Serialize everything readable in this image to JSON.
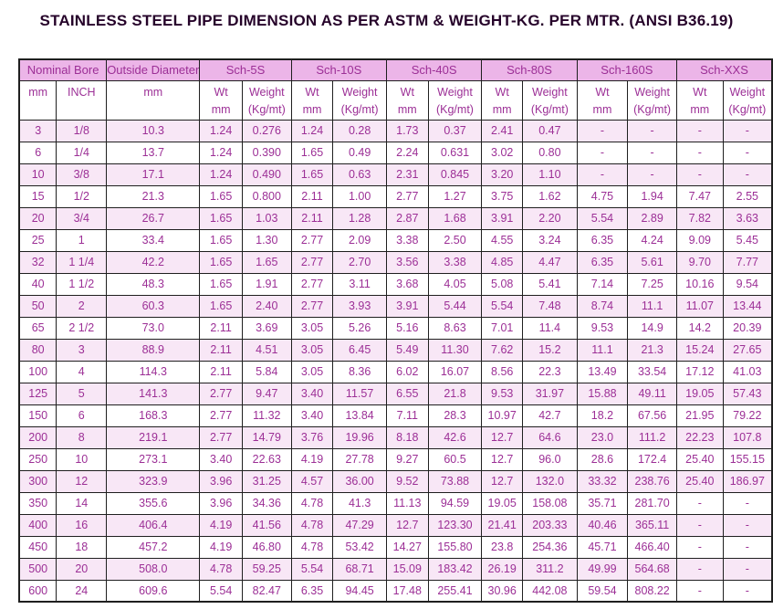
{
  "title": "STAINLESS STEEL PIPE DIMENSION AS PER ASTM & WEIGHT-KG. PER MTR. (ANSI B36.19)",
  "colors": {
    "header_bg": "#ecb5e8",
    "stripe_bg": "#f8e7f6",
    "cell_text": "#9c2f96",
    "title_text": "#26032a",
    "border": "#1f1f1f"
  },
  "table": {
    "groups": [
      {
        "label": "Nominal Bore",
        "cols": 2
      },
      {
        "label": "Outside Diameter",
        "cols": 1
      },
      {
        "label": "Sch-5S",
        "cols": 2
      },
      {
        "label": "Sch-10S",
        "cols": 2
      },
      {
        "label": "Sch-40S",
        "cols": 2
      },
      {
        "label": "Sch-80S",
        "cols": 2
      },
      {
        "label": "Sch-160S",
        "cols": 2
      },
      {
        "label": "Sch-XXS",
        "cols": 2
      }
    ],
    "subheaders": [
      [
        "mm"
      ],
      [
        "INCH"
      ],
      [
        "mm"
      ],
      [
        "Wt",
        "mm"
      ],
      [
        "Weight",
        "(Kg/mt)"
      ],
      [
        "Wt",
        "mm"
      ],
      [
        "Weight",
        "(Kg/mt)"
      ],
      [
        "Wt",
        "mm"
      ],
      [
        "Weight",
        "(Kg/mt)"
      ],
      [
        "Wt",
        "mm"
      ],
      [
        "Weight",
        "(Kg/mt)"
      ],
      [
        "Wt",
        "mm"
      ],
      [
        "Weight",
        "(Kg/mt)"
      ],
      [
        "Wt",
        "mm"
      ],
      [
        "Weight",
        "(Kg/mt)"
      ]
    ],
    "rows": [
      [
        "3",
        "1/8",
        "10.3",
        "1.24",
        "0.276",
        "1.24",
        "0.28",
        "1.73",
        "0.37",
        "2.41",
        "0.47",
        "-",
        "-",
        "-",
        "-"
      ],
      [
        "6",
        "1/4",
        "13.7",
        "1.24",
        "0.390",
        "1.65",
        "0.49",
        "2.24",
        "0.631",
        "3.02",
        "0.80",
        "-",
        "-",
        "-",
        "-"
      ],
      [
        "10",
        "3/8",
        "17.1",
        "1.24",
        "0.490",
        "1.65",
        "0.63",
        "2.31",
        "0.845",
        "3.20",
        "1.10",
        "-",
        "-",
        "-",
        "-"
      ],
      [
        "15",
        "1/2",
        "21.3",
        "1.65",
        "0.800",
        "2.11",
        "1.00",
        "2.77",
        "1.27",
        "3.75",
        "1.62",
        "4.75",
        "1.94",
        "7.47",
        "2.55"
      ],
      [
        "20",
        "3/4",
        "26.7",
        "1.65",
        "1.03",
        "2.11",
        "1.28",
        "2.87",
        "1.68",
        "3.91",
        "2.20",
        "5.54",
        "2.89",
        "7.82",
        "3.63"
      ],
      [
        "25",
        "1",
        "33.4",
        "1.65",
        "1.30",
        "2.77",
        "2.09",
        "3.38",
        "2.50",
        "4.55",
        "3.24",
        "6.35",
        "4.24",
        "9.09",
        "5.45"
      ],
      [
        "32",
        "1 1/4",
        "42.2",
        "1.65",
        "1.65",
        "2.77",
        "2.70",
        "3.56",
        "3.38",
        "4.85",
        "4.47",
        "6.35",
        "5.61",
        "9.70",
        "7.77"
      ],
      [
        "40",
        "1 1/2",
        "48.3",
        "1.65",
        "1.91",
        "2.77",
        "3.11",
        "3.68",
        "4.05",
        "5.08",
        "5.41",
        "7.14",
        "7.25",
        "10.16",
        "9.54"
      ],
      [
        "50",
        "2",
        "60.3",
        "1.65",
        "2.40",
        "2.77",
        "3.93",
        "3.91",
        "5.44",
        "5.54",
        "7.48",
        "8.74",
        "11.1",
        "11.07",
        "13.44"
      ],
      [
        "65",
        "2 1/2",
        "73.0",
        "2.11",
        "3.69",
        "3.05",
        "5.26",
        "5.16",
        "8.63",
        "7.01",
        "11.4",
        "9.53",
        "14.9",
        "14.2",
        "20.39"
      ],
      [
        "80",
        "3",
        "88.9",
        "2.11",
        "4.51",
        "3.05",
        "6.45",
        "5.49",
        "11.30",
        "7.62",
        "15.2",
        "11.1",
        "21.3",
        "15.24",
        "27.65"
      ],
      [
        "100",
        "4",
        "114.3",
        "2.11",
        "5.84",
        "3.05",
        "8.36",
        "6.02",
        "16.07",
        "8.56",
        "22.3",
        "13.49",
        "33.54",
        "17.12",
        "41.03"
      ],
      [
        "125",
        "5",
        "141.3",
        "2.77",
        "9.47",
        "3.40",
        "11.57",
        "6.55",
        "21.8",
        "9.53",
        "31.97",
        "15.88",
        "49.11",
        "19.05",
        "57.43"
      ],
      [
        "150",
        "6",
        "168.3",
        "2.77",
        "11.32",
        "3.40",
        "13.84",
        "7.11",
        "28.3",
        "10.97",
        "42.7",
        "18.2",
        "67.56",
        "21.95",
        "79.22"
      ],
      [
        "200",
        "8",
        "219.1",
        "2.77",
        "14.79",
        "3.76",
        "19.96",
        "8.18",
        "42.6",
        "12.7",
        "64.6",
        "23.0",
        "111.2",
        "22.23",
        "107.8"
      ],
      [
        "250",
        "10",
        "273.1",
        "3.40",
        "22.63",
        "4.19",
        "27.78",
        "9.27",
        "60.5",
        "12.7",
        "96.0",
        "28.6",
        "172.4",
        "25.40",
        "155.15"
      ],
      [
        "300",
        "12",
        "323.9",
        "3.96",
        "31.25",
        "4.57",
        "36.00",
        "9.52",
        "73.88",
        "12.7",
        "132.0",
        "33.32",
        "238.76",
        "25.40",
        "186.97"
      ],
      [
        "350",
        "14",
        "355.6",
        "3.96",
        "34.36",
        "4.78",
        "41.3",
        "11.13",
        "94.59",
        "19.05",
        "158.08",
        "35.71",
        "281.70",
        "-",
        "-"
      ],
      [
        "400",
        "16",
        "406.4",
        "4.19",
        "41.56",
        "4.78",
        "47.29",
        "12.7",
        "123.30",
        "21.41",
        "203.33",
        "40.46",
        "365.11",
        "-",
        "-"
      ],
      [
        "450",
        "18",
        "457.2",
        "4.19",
        "46.80",
        "4.78",
        "53.42",
        "14.27",
        "155.80",
        "23.8",
        "254.36",
        "45.71",
        "466.40",
        "-",
        "-"
      ],
      [
        "500",
        "20",
        "508.0",
        "4.78",
        "59.25",
        "5.54",
        "68.71",
        "15.09",
        "183.42",
        "26.19",
        "311.2",
        "49.99",
        "564.68",
        "-",
        "-"
      ],
      [
        "600",
        "24",
        "609.6",
        "5.54",
        "82.47",
        "6.35",
        "94.45",
        "17.48",
        "255.41",
        "30.96",
        "442.08",
        "59.54",
        "808.22",
        "-",
        "-"
      ]
    ]
  }
}
